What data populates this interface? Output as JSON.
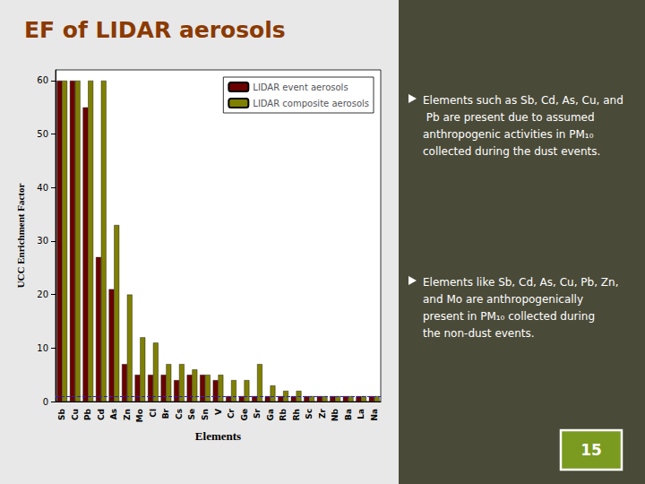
{
  "chart_data": {
    "type": "bar",
    "title": "EF of LIDAR aerosols",
    "xlabel": "Elements",
    "ylabel": "UCC Enrichment Factor",
    "categories": [
      "Sb",
      "Cu",
      "Pb",
      "Cd",
      "As",
      "Zn",
      "Mo",
      "Cl",
      "Br",
      "Cs",
      "Se",
      "Sn",
      "V",
      "Cr",
      "Ge",
      "Sr",
      "Ga",
      "Rb",
      "Rh",
      "Sc",
      "Zr",
      "Nb",
      "Ba",
      "La",
      "Na"
    ],
    "series": [
      {
        "name": "LIDAR event aerosols",
        "color": "#6B0000",
        "values": [
          60,
          60,
          55,
          27,
          21,
          7,
          5,
          5,
          5,
          4,
          5,
          5,
          4,
          1,
          1,
          1,
          1,
          1,
          1,
          1,
          1,
          1,
          1,
          1,
          1
        ]
      },
      {
        "name": "LIDAR composite aerosols",
        "color": "#808000",
        "values": [
          60,
          60,
          60,
          60,
          33,
          20,
          12,
          11,
          7,
          7,
          6,
          5,
          5,
          4,
          4,
          7,
          3,
          2,
          2,
          1,
          1,
          1,
          1,
          1,
          1
        ]
      }
    ],
    "ylim": [
      0,
      62
    ],
    "yticks": [
      0,
      10,
      20,
      30,
      40,
      50,
      60
    ],
    "grid": false,
    "legend": "upper right",
    "hline": 1,
    "annotations": [
      "Elements such as Sb, Cd, As, Cu, and Pb are present due to assumed anthropogenic activities in PM₁₀ collected during the dust events.",
      "Elements like Sb, Cd, As, Cu, Pb, Zn, and Mo are anthropogenically present in PM₁₀ collected during the non-dust events.",
      "15"
    ]
  }
}
